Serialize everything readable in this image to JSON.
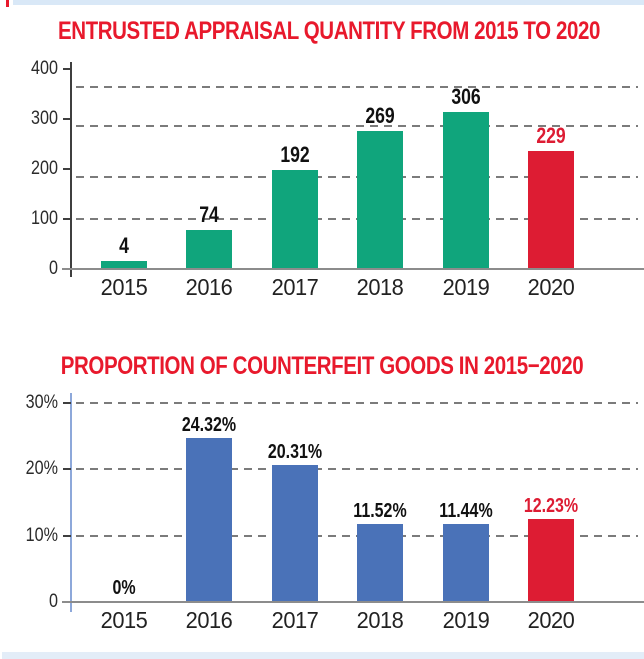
{
  "page": {
    "background": "#ffffff",
    "top_strip_color": "#d9e8f7",
    "bottom_strip_color": "#e3edf8",
    "corner_mark_color": "#e8192c"
  },
  "chart_data": [
    {
      "type": "bar",
      "title": "ENTRUSTED APPRAISAL QUANTITY FROM 2015 TO 2020",
      "title_color": "#e8192c",
      "xlabel": "",
      "ylabel": "",
      "categories": [
        "2015",
        "2016",
        "2017",
        "2018",
        "2019",
        "2020"
      ],
      "values": [
        4,
        74,
        192,
        269,
        306,
        229
      ],
      "value_labels": [
        "4",
        "74",
        "192",
        "269",
        "306",
        "229"
      ],
      "bar_colors": [
        "#10a57c",
        "#10a57c",
        "#10a57c",
        "#10a57c",
        "#10a57c",
        "#dd1c33"
      ],
      "value_label_colors": [
        "#111111",
        "#111111",
        "#111111",
        "#111111",
        "#111111",
        "#dd1c33"
      ],
      "yticks": [
        {
          "value": 0,
          "label": "0"
        },
        {
          "value": 100,
          "label": "100"
        },
        {
          "value": 200,
          "label": "200"
        },
        {
          "value": 300,
          "label": "300"
        },
        {
          "value": 400,
          "label": "400"
        }
      ],
      "ylim": [
        0,
        400
      ],
      "grid": "horizontal-dashed",
      "legend": "none"
    },
    {
      "type": "bar",
      "title": "PROPORTION OF COUNTERFEIT GOODS IN 2015−2020",
      "title_color": "#e8192c",
      "xlabel": "",
      "ylabel": "",
      "categories": [
        "2015",
        "2016",
        "2017",
        "2018",
        "2019",
        "2020"
      ],
      "values": [
        0,
        24.32,
        20.31,
        11.52,
        11.44,
        12.23
      ],
      "value_labels": [
        "0%",
        "24.32%",
        "20.31%",
        "11.52%",
        "11.44%",
        "12.23%"
      ],
      "bar_colors": [
        "#4a72b8",
        "#4a72b8",
        "#4a72b8",
        "#4a72b8",
        "#4a72b8",
        "#dd1c33"
      ],
      "value_label_colors": [
        "#111111",
        "#111111",
        "#111111",
        "#111111",
        "#111111",
        "#dd1c33"
      ],
      "yticks": [
        {
          "value": 0,
          "label": "0"
        },
        {
          "value": 10,
          "label": "10%"
        },
        {
          "value": 20,
          "label": "20%"
        },
        {
          "value": 30,
          "label": "30%"
        }
      ],
      "ylim": [
        0,
        30
      ],
      "grid": "horizontal-dashed",
      "legend": "none"
    }
  ]
}
